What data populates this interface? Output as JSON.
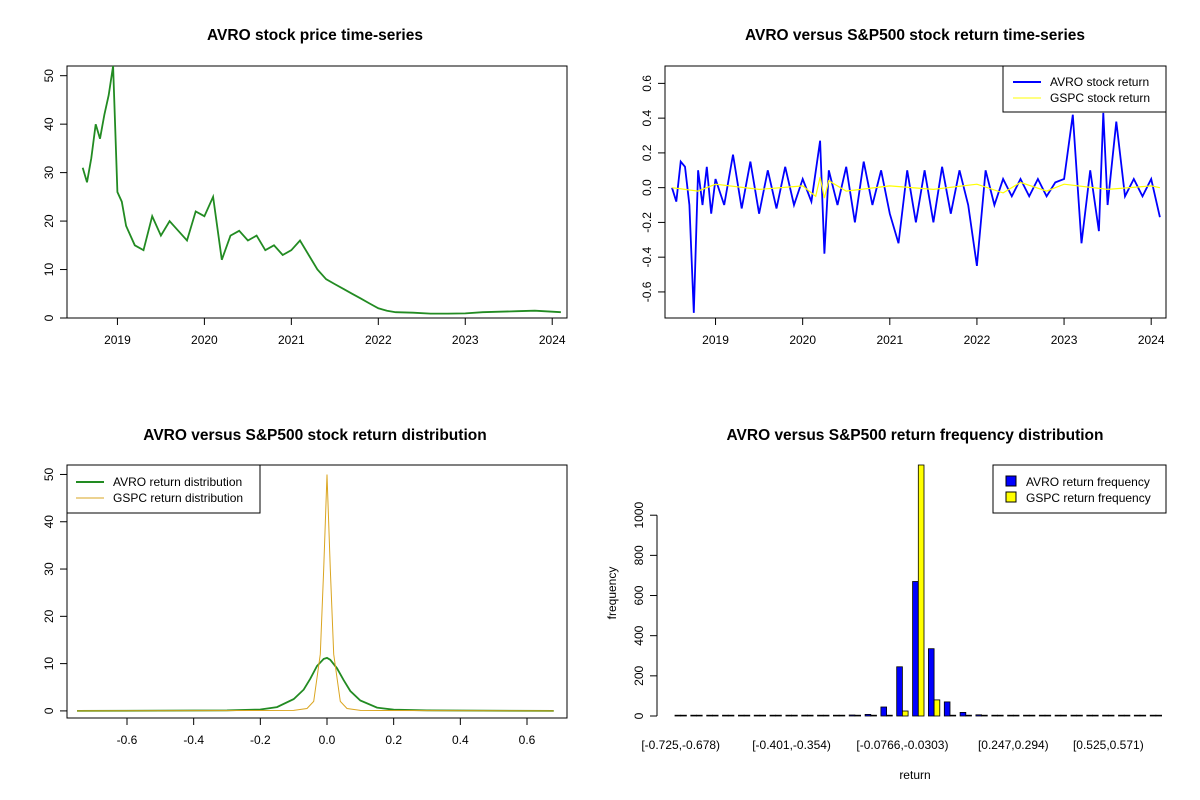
{
  "chart_data": [
    {
      "type": "line",
      "title": "AVRO stock price time-series",
      "xlabel": "",
      "ylabel": "",
      "xlim": [
        2018.42,
        2024.17
      ],
      "ylim": [
        0,
        52
      ],
      "x_ticks": [
        2019,
        2020,
        2021,
        2022,
        2023,
        2024
      ],
      "x_tick_labels": [
        "2019",
        "2020",
        "2021",
        "2022",
        "2023",
        "2024"
      ],
      "y_ticks": [
        0,
        10,
        20,
        30,
        40,
        50
      ],
      "y_tick_labels": [
        "0",
        "10",
        "20",
        "30",
        "40",
        "50"
      ],
      "series": [
        {
          "color": "#228B22",
          "x": [
            2018.6,
            2018.65,
            2018.7,
            2018.75,
            2018.8,
            2018.85,
            2018.9,
            2018.95,
            2019.0,
            2019.05,
            2019.1,
            2019.2,
            2019.3,
            2019.4,
            2019.5,
            2019.6,
            2019.7,
            2019.8,
            2019.9,
            2020.0,
            2020.1,
            2020.2,
            2020.3,
            2020.4,
            2020.5,
            2020.6,
            2020.7,
            2020.8,
            2020.9,
            2021.0,
            2021.1,
            2021.2,
            2021.3,
            2021.4,
            2021.5,
            2021.6,
            2021.7,
            2021.8,
            2021.9,
            2022.0,
            2022.1,
            2022.2,
            2022.4,
            2022.6,
            2022.8,
            2023.0,
            2023.2,
            2023.4,
            2023.6,
            2023.8,
            2024.0,
            2024.1
          ],
          "y": [
            31,
            28,
            33,
            40,
            37,
            42,
            46,
            52,
            26,
            24,
            19,
            15,
            14,
            21,
            17,
            20,
            18,
            16,
            22,
            21,
            25,
            12,
            17,
            18,
            16,
            17,
            14,
            15,
            13,
            14,
            16,
            13,
            10,
            8,
            7,
            6,
            5,
            4,
            3,
            2,
            1.5,
            1.2,
            1.1,
            0.9,
            0.9,
            0.95,
            1.2,
            1.3,
            1.4,
            1.5,
            1.3,
            1.2
          ]
        }
      ]
    },
    {
      "type": "line",
      "title": "AVRO versus S&P500 stock return time-series",
      "xlabel": "",
      "ylabel": "",
      "xlim": [
        2018.42,
        2024.17
      ],
      "ylim": [
        -0.75,
        0.7
      ],
      "x_ticks": [
        2019,
        2020,
        2021,
        2022,
        2023,
        2024
      ],
      "x_tick_labels": [
        "2019",
        "2020",
        "2021",
        "2022",
        "2023",
        "2024"
      ],
      "y_ticks": [
        -0.6,
        -0.4,
        -0.2,
        0.0,
        0.2,
        0.4,
        0.6
      ],
      "y_tick_labels": [
        "-0.6",
        "-0.4",
        "-0.2",
        "0.0",
        "0.2",
        "0.4",
        "0.6"
      ],
      "legend_position": "top-right",
      "series": [
        {
          "name": "AVRO stock return",
          "color": "#0000FF",
          "x": [
            2018.5,
            2018.55,
            2018.6,
            2018.65,
            2018.7,
            2018.75,
            2018.8,
            2018.85,
            2018.9,
            2018.95,
            2019.0,
            2019.1,
            2019.2,
            2019.3,
            2019.4,
            2019.5,
            2019.6,
            2019.7,
            2019.8,
            2019.9,
            2020.0,
            2020.1,
            2020.2,
            2020.25,
            2020.3,
            2020.4,
            2020.5,
            2020.6,
            2020.7,
            2020.8,
            2020.9,
            2021.0,
            2021.1,
            2021.2,
            2021.3,
            2021.4,
            2021.5,
            2021.6,
            2021.7,
            2021.8,
            2021.9,
            2022.0,
            2022.1,
            2022.2,
            2022.3,
            2022.4,
            2022.5,
            2022.6,
            2022.7,
            2022.8,
            2022.9,
            2023.0,
            2023.1,
            2023.2,
            2023.3,
            2023.4,
            2023.45,
            2023.5,
            2023.6,
            2023.7,
            2023.8,
            2023.9,
            2024.0,
            2024.1
          ],
          "y": [
            0.0,
            -0.08,
            0.15,
            0.12,
            -0.1,
            -0.72,
            0.1,
            -0.1,
            0.12,
            -0.15,
            0.05,
            -0.1,
            0.19,
            -0.12,
            0.15,
            -0.15,
            0.1,
            -0.12,
            0.12,
            -0.1,
            0.05,
            -0.08,
            0.27,
            -0.38,
            0.1,
            -0.1,
            0.12,
            -0.2,
            0.15,
            -0.1,
            0.1,
            -0.15,
            -0.32,
            0.1,
            -0.2,
            0.1,
            -0.2,
            0.12,
            -0.15,
            0.1,
            -0.1,
            -0.45,
            0.1,
            -0.1,
            0.05,
            -0.05,
            0.05,
            -0.05,
            0.05,
            -0.05,
            0.03,
            0.05,
            0.42,
            -0.32,
            0.1,
            -0.25,
            0.43,
            -0.1,
            0.38,
            -0.05,
            0.05,
            -0.05,
            0.05,
            -0.17
          ]
        },
        {
          "name": "GSPC stock return",
          "color": "#FFFF00",
          "x": [
            2018.5,
            2018.8,
            2019.0,
            2019.5,
            2020.0,
            2020.15,
            2020.2,
            2020.25,
            2020.3,
            2020.5,
            2021.0,
            2021.5,
            2022.0,
            2022.3,
            2022.5,
            2022.8,
            2023.0,
            2023.5,
            2024.0,
            2024.1
          ],
          "y": [
            0.0,
            -0.02,
            0.02,
            -0.01,
            0.01,
            -0.05,
            0.06,
            -0.06,
            0.04,
            -0.02,
            0.01,
            -0.01,
            0.02,
            -0.03,
            0.03,
            -0.02,
            0.02,
            -0.01,
            0.01,
            0.0
          ]
        }
      ]
    },
    {
      "type": "line",
      "title": "AVRO versus S&P500 stock return distribution",
      "xlabel": "",
      "ylabel": "",
      "xlim": [
        -0.78,
        0.72
      ],
      "ylim": [
        -1.5,
        52
      ],
      "x_ticks": [
        -0.6,
        -0.4,
        -0.2,
        0.0,
        0.2,
        0.4,
        0.6
      ],
      "x_tick_labels": [
        "-0.6",
        "-0.4",
        "-0.2",
        "0.0",
        "0.2",
        "0.4",
        "0.6"
      ],
      "y_ticks": [
        0,
        10,
        20,
        30,
        40,
        50
      ],
      "y_tick_labels": [
        "0",
        "10",
        "20",
        "30",
        "40",
        "50"
      ],
      "legend_position": "top-left",
      "series": [
        {
          "name": "AVRO return distribution",
          "color": "#228B22",
          "x": [
            -0.75,
            -0.3,
            -0.2,
            -0.15,
            -0.1,
            -0.07,
            -0.05,
            -0.03,
            -0.01,
            0.0,
            0.01,
            0.03,
            0.05,
            0.07,
            0.1,
            0.15,
            0.2,
            0.3,
            0.68
          ],
          "y": [
            0,
            0.1,
            0.3,
            0.8,
            2.5,
            4.5,
            6.8,
            9.5,
            11.0,
            11.2,
            10.8,
            9.0,
            6.5,
            4.2,
            2.2,
            0.7,
            0.25,
            0.1,
            0
          ]
        },
        {
          "name": "GSPC return distribution",
          "color": "#DAA520",
          "x": [
            -0.75,
            -0.1,
            -0.06,
            -0.04,
            -0.02,
            -0.01,
            0.0,
            0.01,
            0.02,
            0.04,
            0.06,
            0.1,
            0.68
          ],
          "y": [
            0,
            0.1,
            0.5,
            2.0,
            12.0,
            30.0,
            50.0,
            30.0,
            12.0,
            2.0,
            0.5,
            0.1,
            0
          ]
        }
      ]
    },
    {
      "type": "bar",
      "title": "AVRO versus S&P500 return frequency distribution",
      "xlabel": "return",
      "ylabel": "frequency",
      "ylim": [
        0,
        1250
      ],
      "y_ticks": [
        0,
        200,
        400,
        600,
        800,
        1000
      ],
      "y_tick_labels": [
        "0",
        "200",
        "400",
        "600",
        "800",
        "1000"
      ],
      "x_tick_labels": [
        "[-0.725,-0.678)",
        "[-0.401,-0.354)",
        "[-0.0766,-0.0303)",
        "[0.247,0.294)",
        "[0.525,0.571)"
      ],
      "x_tick_bins": [
        0,
        7,
        14,
        21,
        27
      ],
      "legend_position": "top-right",
      "bin_count": 31,
      "series": [
        {
          "name": "AVRO return frequency",
          "color": "#0000FF",
          "values": [
            1,
            0,
            0,
            0,
            0,
            0,
            0,
            0,
            2,
            1,
            2,
            5,
            8,
            45,
            245,
            670,
            335,
            70,
            18,
            6,
            2,
            1,
            1,
            0,
            2,
            1,
            0,
            0,
            0,
            0,
            1
          ]
        },
        {
          "name": "GSPC return frequency",
          "color": "#FFFF00",
          "values": [
            0,
            0,
            0,
            0,
            0,
            0,
            0,
            0,
            0,
            0,
            0,
            0,
            0,
            0,
            25,
            1250,
            80,
            3,
            0,
            0,
            0,
            0,
            0,
            0,
            0,
            0,
            0,
            0,
            0,
            0,
            0
          ]
        }
      ]
    }
  ]
}
